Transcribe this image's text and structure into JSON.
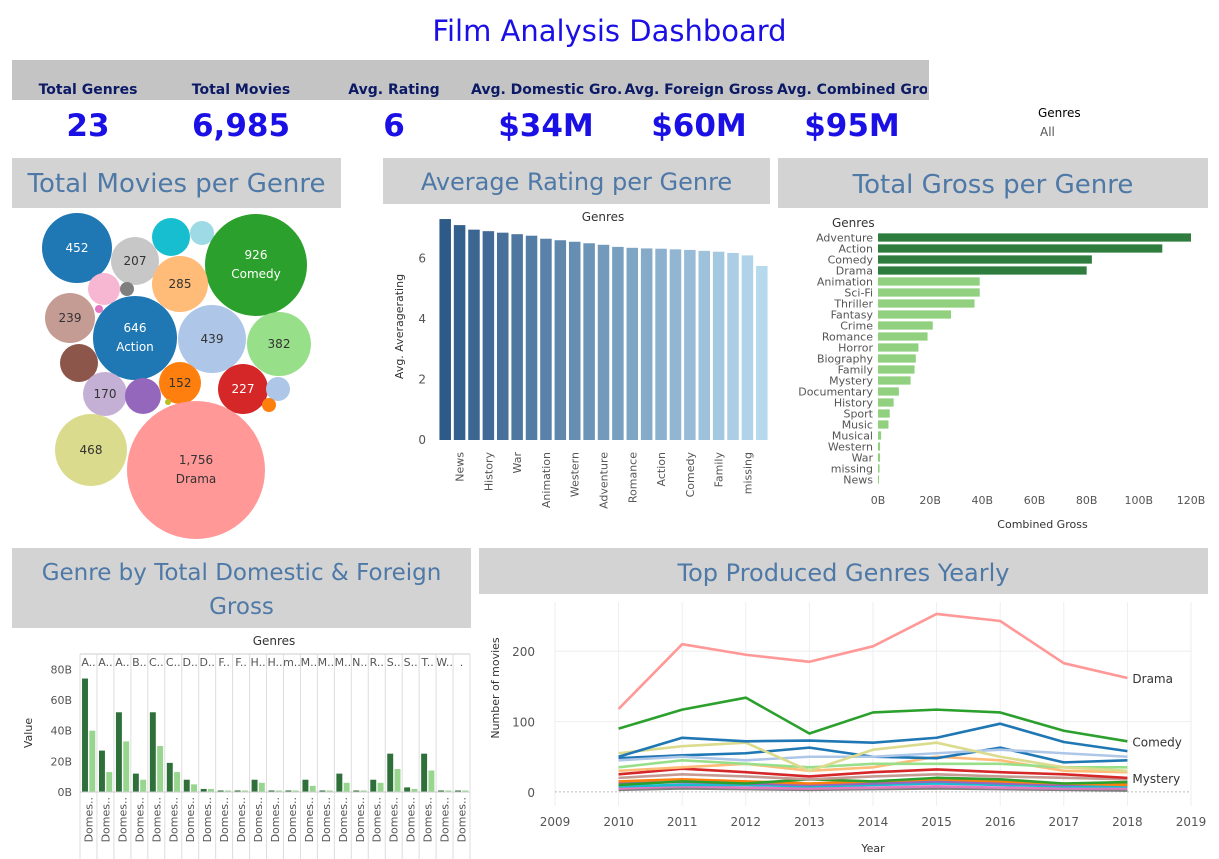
{
  "title": "Film  Analysis Dashboard",
  "kpis": [
    {
      "label": "Total Genres",
      "value": "23"
    },
    {
      "label": "Total Movies",
      "value": "6,985"
    },
    {
      "label": "Avg. Rating",
      "value": "6"
    },
    {
      "label": "Avg. Domestic Gro..",
      "value": "$34M"
    },
    {
      "label": "Avg. Foreign Gross",
      "value": "$60M"
    },
    {
      "label": "Avg. Combined Gro..",
      "value": "$95M"
    }
  ],
  "filter": {
    "label": "Genres",
    "value": "All"
  },
  "panels": {
    "movies_per_genre": "Total Movies per Genre",
    "avg_rating": "Average Rating per Genre",
    "total_gross": "Total Gross per Genre",
    "dom_foreign": "Genre by Total Domestic & Foreign Gross",
    "yearly": "Top Produced Genres Yearly"
  },
  "chart_data": [
    {
      "id": "bubbles",
      "type": "bubble",
      "bubbles": [
        {
          "value": 452,
          "label": "452",
          "name": "",
          "color": "#1f77b4"
        },
        {
          "value": 207,
          "label": "207",
          "name": "",
          "color": "#c7c7c7"
        },
        {
          "value": null,
          "label": "",
          "name": "",
          "color": "#17becf"
        },
        {
          "value": null,
          "label": "",
          "name": "",
          "color": "#9edae5"
        },
        {
          "value": 926,
          "label": "926",
          "name": "Comedy",
          "color": "#2ca02c"
        },
        {
          "value": null,
          "label": "",
          "name": "",
          "color": "#f7b6d2"
        },
        {
          "value": null,
          "label": "",
          "name": "",
          "color": "#7f7f7f"
        },
        {
          "value": 285,
          "label": "285",
          "name": "",
          "color": "#ffbb78"
        },
        {
          "value": null,
          "label": "",
          "name": "",
          "color": "#e377c2"
        },
        {
          "value": 239,
          "label": "239",
          "name": "",
          "color": "#c49c94"
        },
        {
          "value": 646,
          "label": "646",
          "name": "Action",
          "color": "#1f77b4"
        },
        {
          "value": 439,
          "label": "439",
          "name": "",
          "color": "#aec7e8"
        },
        {
          "value": 382,
          "label": "382",
          "name": "",
          "color": "#98df8a"
        },
        {
          "value": null,
          "label": "",
          "name": "",
          "color": "#8c564b"
        },
        {
          "value": 152,
          "label": "152",
          "name": "",
          "color": "#ff7f0e"
        },
        {
          "value": 227,
          "label": "227",
          "name": "",
          "color": "#d62728"
        },
        {
          "value": null,
          "label": "",
          "name": "",
          "color": "#aec7e8"
        },
        {
          "value": 170,
          "label": "170",
          "name": "",
          "color": "#c5b0d5"
        },
        {
          "value": null,
          "label": "",
          "name": "",
          "color": "#9467bd"
        },
        {
          "value": null,
          "label": "",
          "name": "",
          "color": "#ff7f0e"
        },
        {
          "value": null,
          "label": "",
          "name": "",
          "color": "#bcbd22"
        },
        {
          "value": 468,
          "label": "468",
          "name": "",
          "color": "#dbdb8d"
        },
        {
          "value": 1756,
          "label": "1,756",
          "name": "Drama",
          "color": "#ff9896"
        }
      ]
    },
    {
      "id": "avg_rating",
      "type": "bar",
      "header": "Genres",
      "ylabel": "Avg. Averagerating",
      "ylim": [
        0,
        7.5
      ],
      "yticks": [
        0,
        2,
        4,
        6
      ],
      "values": [
        7.3,
        7.1,
        6.95,
        6.9,
        6.85,
        6.8,
        6.75,
        6.65,
        6.6,
        6.55,
        6.5,
        6.45,
        6.38,
        6.35,
        6.33,
        6.32,
        6.3,
        6.28,
        6.25,
        6.22,
        6.18,
        6.1,
        5.75
      ],
      "ticklabels": [
        "",
        "News",
        "",
        "History",
        "",
        "War",
        "",
        "Animation",
        "",
        "Western",
        "",
        "Adventure",
        "",
        "Romance",
        "",
        "Action",
        "",
        "Comedy",
        "",
        "Family",
        "",
        "missing",
        ""
      ]
    },
    {
      "id": "total_gross",
      "type": "bar",
      "header": "Genres",
      "xlabel": "Combined Gross",
      "xlim": [
        0,
        120
      ],
      "xticks": [
        "0B",
        "20B",
        "40B",
        "60B",
        "80B",
        "100B",
        "120B"
      ],
      "categories": [
        "Adventure",
        "Action",
        "Comedy",
        "Drama",
        "Animation",
        "Sci-Fi",
        "Thriller",
        "Fantasy",
        "Crime",
        "Romance",
        "Horror",
        "Biography",
        "Family",
        "Mystery",
        "Documentary",
        "History",
        "Sport",
        "Music",
        "Musical",
        "Western",
        "War",
        "missing",
        "News"
      ],
      "values": [
        120,
        109,
        82,
        80,
        39,
        39,
        37,
        28,
        21,
        19,
        15.5,
        14.5,
        14,
        12.5,
        8,
        6,
        4.5,
        4,
        1.2,
        0.8,
        0.8,
        0.6,
        0.2
      ]
    },
    {
      "id": "dom_foreign",
      "type": "bar",
      "header": "Genres",
      "ylabel": "Value",
      "ylim": [
        0,
        90
      ],
      "yticks": [
        "0B",
        "20B",
        "40B",
        "60B",
        "80B"
      ],
      "categories": [
        "A..",
        "A..",
        "A..",
        "B..",
        "C..",
        "C..",
        "D..",
        "D..",
        "F..",
        "F..",
        "H..",
        "H..",
        "m..",
        "M..",
        "M..",
        "M..",
        "N..",
        "R..",
        "S..",
        "S..",
        "T..",
        "W..",
        "."
      ],
      "bottom_label": "Domes..",
      "series": [
        {
          "name": "",
          "color": "#2e6f3a",
          "values": [
            74,
            27,
            52,
            12,
            52,
            19,
            8,
            2,
            1,
            1,
            8,
            1,
            1,
            8,
            1,
            12,
            1,
            8,
            25,
            3,
            25,
            1,
            1
          ]
        },
        {
          "name": "",
          "color": "#98d68f",
          "values": [
            40,
            13,
            33,
            8,
            30,
            13,
            5,
            2,
            1,
            1,
            6,
            1,
            1,
            4,
            1,
            6,
            1,
            6,
            15,
            2,
            14,
            1,
            1
          ]
        }
      ],
      "pairs_top": [
        74,
        84,
        74,
        27,
        52,
        12,
        52,
        19,
        8,
        2,
        8,
        1,
        1,
        8,
        1,
        12,
        1,
        25,
        3,
        25,
        1,
        1,
        1
      ]
    },
    {
      "id": "yearly",
      "type": "line",
      "xlabel": "Year",
      "ylabel": "Number of movies",
      "xlim": [
        2009,
        2019
      ],
      "xticks": [
        2009,
        2010,
        2011,
        2012,
        2013,
        2014,
        2015,
        2016,
        2017,
        2018,
        2019
      ],
      "ylim": [
        -20,
        270
      ],
      "yticks": [
        0,
        100,
        200
      ],
      "x": [
        2010,
        2011,
        2012,
        2013,
        2014,
        2015,
        2016,
        2017,
        2018
      ],
      "series": [
        {
          "name": "Drama",
          "color": "#ff9896",
          "values": [
            118,
            210,
            195,
            185,
            207,
            253,
            243,
            183,
            162
          ]
        },
        {
          "name": "Comedy",
          "color": "#2ca02c",
          "values": [
            90,
            117,
            134,
            83,
            113,
            117,
            113,
            87,
            72
          ]
        },
        {
          "name": "",
          "color": "#1f77b4",
          "values": [
            50,
            77,
            72,
            73,
            70,
            77,
            97,
            71,
            58
          ]
        },
        {
          "name": "",
          "color": "#dbdb8d",
          "values": [
            55,
            65,
            70,
            30,
            60,
            70,
            50,
            35,
            30
          ]
        },
        {
          "name": "",
          "color": "#aec7e8",
          "values": [
            45,
            50,
            45,
            50,
            50,
            55,
            60,
            55,
            50
          ]
        },
        {
          "name": "",
          "color": "#1f77b4",
          "values": [
            48,
            52,
            55,
            63,
            50,
            48,
            63,
            42,
            45
          ]
        },
        {
          "name": "",
          "color": "#98df8a",
          "values": [
            35,
            45,
            40,
            35,
            40,
            40,
            40,
            35,
            35
          ]
        },
        {
          "name": "",
          "color": "#ffbb78",
          "values": [
            30,
            35,
            40,
            30,
            35,
            50,
            45,
            30,
            28
          ]
        },
        {
          "name": "",
          "color": "#d62728",
          "values": [
            25,
            33,
            28,
            22,
            28,
            32,
            28,
            25,
            20
          ]
        },
        {
          "name": "",
          "color": "#c49c94",
          "values": [
            20,
            25,
            22,
            18,
            22,
            25,
            22,
            20,
            18
          ]
        },
        {
          "name": "",
          "color": "#2ca02c",
          "values": [
            10,
            15,
            12,
            18,
            15,
            20,
            18,
            12,
            14
          ]
        },
        {
          "name": "",
          "color": "#ff7f0e",
          "values": [
            15,
            18,
            15,
            12,
            15,
            18,
            15,
            12,
            10
          ]
        },
        {
          "name": "",
          "color": "#9467bd",
          "values": [
            12,
            14,
            12,
            10,
            12,
            15,
            12,
            10,
            12
          ]
        },
        {
          "name": "",
          "color": "#17becf",
          "values": [
            8,
            10,
            10,
            8,
            10,
            12,
            10,
            8,
            8
          ]
        },
        {
          "name": "",
          "color": "#e377c2",
          "values": [
            5,
            8,
            6,
            5,
            6,
            8,
            6,
            5,
            5
          ]
        },
        {
          "name": "Mystery",
          "color": "#7f7f7f",
          "values": [
            3,
            5,
            4,
            3,
            4,
            5,
            4,
            3,
            2
          ]
        }
      ],
      "end_labels": [
        "Drama",
        "Comedy",
        "Mystery"
      ]
    }
  ]
}
